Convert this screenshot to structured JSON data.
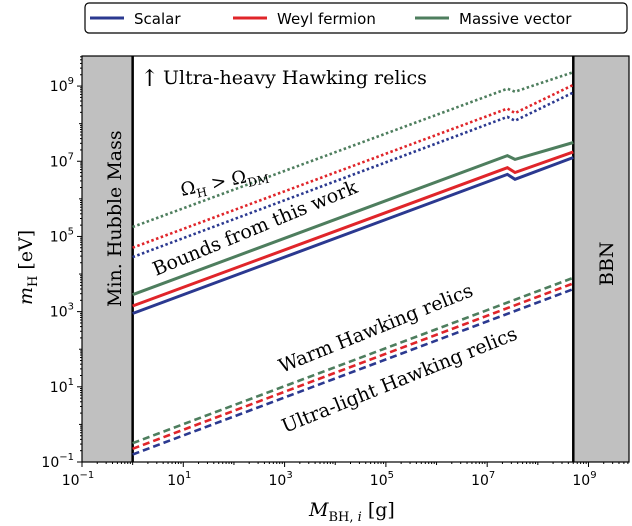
{
  "chart_data": {
    "type": "line",
    "xscale": "log",
    "yscale": "log",
    "xlim_exp": [
      -1,
      9.8
    ],
    "ylim_exp": [
      -1,
      9.8
    ],
    "xlabel": "M_BH,i [g]",
    "ylabel": "m_H [eV]",
    "x_tick_exponents": [
      -1,
      1,
      3,
      5,
      7,
      9
    ],
    "y_tick_exponents": [
      -1,
      1,
      3,
      5,
      7,
      9
    ],
    "legend": [
      "Scalar",
      "Weyl fermion",
      "Massive vector"
    ],
    "colors": {
      "Scalar": "#2b3990",
      "Weyl fermion": "#e0252a",
      "Massive vector": "#4e7e5e",
      "band": "#c0c0c0"
    },
    "shaded_regions": [
      {
        "label": "Min. Hubble Mass",
        "x_exp_range": [
          -1,
          0
        ]
      },
      {
        "label": "BBN",
        "x_exp_range": [
          8.7,
          9.8
        ]
      }
    ],
    "series": [
      {
        "name": "Scalar",
        "style": "solid",
        "points_log10": [
          [
            0,
            2.95
          ],
          [
            7.4,
            6.65
          ],
          [
            7.55,
            6.52
          ],
          [
            8.7,
            7.1
          ]
        ]
      },
      {
        "name": "Weyl fermion",
        "style": "solid",
        "points_log10": [
          [
            0,
            3.15
          ],
          [
            7.4,
            6.83
          ],
          [
            7.55,
            6.7
          ],
          [
            8.7,
            7.25
          ]
        ]
      },
      {
        "name": "Massive vector",
        "style": "solid",
        "points_log10": [
          [
            0,
            3.45
          ],
          [
            7.4,
            7.15
          ],
          [
            7.55,
            7.05
          ],
          [
            8.7,
            7.5
          ]
        ]
      },
      {
        "name": "Scalar",
        "style": "dotted",
        "points_log10": [
          [
            0,
            4.45
          ],
          [
            7.4,
            8.18
          ],
          [
            7.55,
            8.08
          ],
          [
            8.7,
            8.83
          ]
        ]
      },
      {
        "name": "Weyl fermion",
        "style": "dotted",
        "points_log10": [
          [
            0,
            4.7
          ],
          [
            7.4,
            8.4
          ],
          [
            7.55,
            8.28
          ],
          [
            8.7,
            9.03
          ]
        ]
      },
      {
        "name": "Massive vector",
        "style": "dotted",
        "points_log10": [
          [
            0,
            5.25
          ],
          [
            7.4,
            8.93
          ],
          [
            7.55,
            8.85
          ],
          [
            8.7,
            9.37
          ]
        ]
      },
      {
        "name": "Scalar",
        "style": "dashed",
        "points_log10": [
          [
            0,
            -0.8
          ],
          [
            8.7,
            3.6
          ]
        ]
      },
      {
        "name": "Weyl fermion",
        "style": "dashed",
        "points_log10": [
          [
            0,
            -0.65
          ],
          [
            8.7,
            3.75
          ]
        ]
      },
      {
        "name": "Massive vector",
        "style": "dashed",
        "points_log10": [
          [
            0,
            -0.5
          ],
          [
            8.7,
            3.9
          ]
        ]
      }
    ],
    "annotations": {
      "ultra_heavy": "Ultra-heavy Hawking relics",
      "omega": "Ω_H > Ω_DM",
      "bounds": "Bounds from this work",
      "warm": "Warm Hawking relics",
      "ultra_light": "Ultra-light Hawking relics",
      "min_hubble": "Min. Hubble Mass",
      "bbn": "BBN"
    }
  }
}
